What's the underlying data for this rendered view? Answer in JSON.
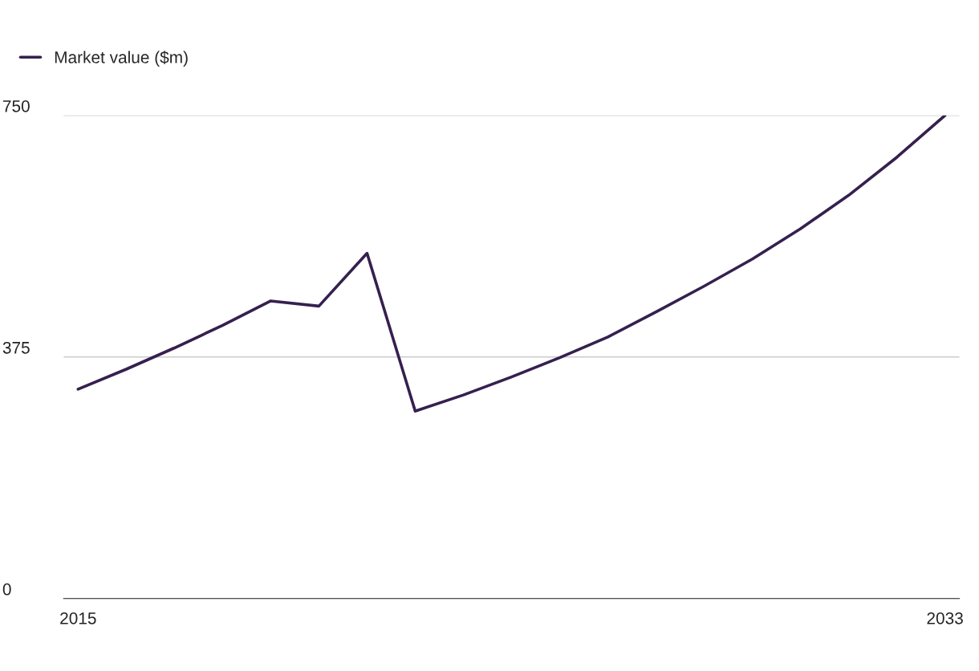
{
  "chart_data": {
    "type": "line",
    "x": [
      2015,
      2016,
      2017,
      2018,
      2019,
      2020,
      2021,
      2022,
      2023,
      2024,
      2025,
      2026,
      2027,
      2028,
      2029,
      2030,
      2031,
      2032,
      2033
    ],
    "series": [
      {
        "name": "Market value ($m)",
        "color": "#35204f",
        "values": [
          325,
          356,
          389,
          424,
          462,
          454,
          536,
          291,
          316,
          344,
          374,
          406,
          445,
          485,
          527,
          574,
          626,
          685,
          750
        ]
      }
    ],
    "xlim": [
      2014.7,
      2033.3
    ],
    "xticks": [
      2015,
      2033
    ],
    "ylim": [
      0,
      750
    ],
    "yticks": [
      0,
      375,
      750
    ],
    "grid": "y",
    "legend": "top left",
    "marker": "none",
    "line_style": "solid"
  }
}
